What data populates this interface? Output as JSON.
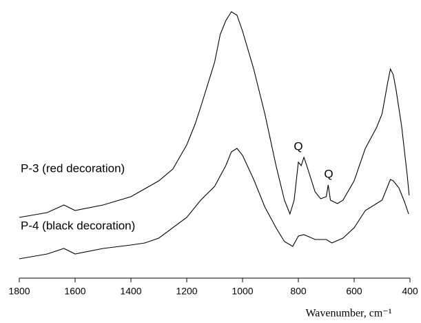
{
  "chart_data": {
    "type": "line",
    "x_label": "Wavenumber, cm⁻¹",
    "xlim": [
      1800,
      400
    ],
    "xticks": [
      1800,
      1600,
      1400,
      1200,
      1000,
      800,
      600,
      400
    ],
    "ylim": [
      0,
      100
    ],
    "annotations": [
      "Q",
      "Q"
    ],
    "series": [
      {
        "name": "P-3 (red decoration)",
        "color": "#000000",
        "x": [
          1800,
          1700,
          1640,
          1600,
          1500,
          1400,
          1300,
          1250,
          1200,
          1170,
          1150,
          1100,
          1080,
          1060,
          1040,
          1020,
          1000,
          960,
          920,
          880,
          850,
          830,
          815,
          800,
          790,
          780,
          770,
          740,
          720,
          700,
          693,
          685,
          660,
          640,
          600,
          560,
          520,
          500,
          480,
          470,
          460,
          450,
          430,
          410,
          403
        ],
        "values": [
          22,
          23.75,
          26.5,
          24.5,
          26.5,
          29.5,
          35.25,
          39.5,
          48.25,
          55.75,
          62,
          78.25,
          88.25,
          93.25,
          96.5,
          95.25,
          89.5,
          75.75,
          59.5,
          40.75,
          28.25,
          23.25,
          28.25,
          42,
          40.75,
          43.75,
          40.75,
          31.25,
          28.75,
          29.5,
          33.75,
          28.25,
          27,
          28.25,
          35.25,
          47,
          54.5,
          59.5,
          70.75,
          75.75,
          73.75,
          68.25,
          55,
          37.25,
          30
        ]
      },
      {
        "name": "P-4 (black decoration)",
        "color": "#000000",
        "x": [
          1800,
          1700,
          1640,
          1600,
          1500,
          1400,
          1350,
          1300,
          1200,
          1150,
          1100,
          1060,
          1040,
          1020,
          1000,
          960,
          920,
          880,
          850,
          820,
          800,
          780,
          740,
          700,
          680,
          640,
          600,
          560,
          520,
          500,
          480,
          470,
          460,
          440,
          420,
          405
        ],
        "values": [
          7,
          8.75,
          10.75,
          8.75,
          10.75,
          12,
          12.75,
          14.5,
          22,
          28.25,
          33.25,
          40.75,
          45.75,
          47,
          44.5,
          35.75,
          25.75,
          18.25,
          13.25,
          11.5,
          15.25,
          15.75,
          14,
          14,
          12.75,
          14.5,
          18.25,
          24.5,
          27,
          28.25,
          33.25,
          35.75,
          35.25,
          32.75,
          27.75,
          23.25
        ]
      }
    ]
  }
}
